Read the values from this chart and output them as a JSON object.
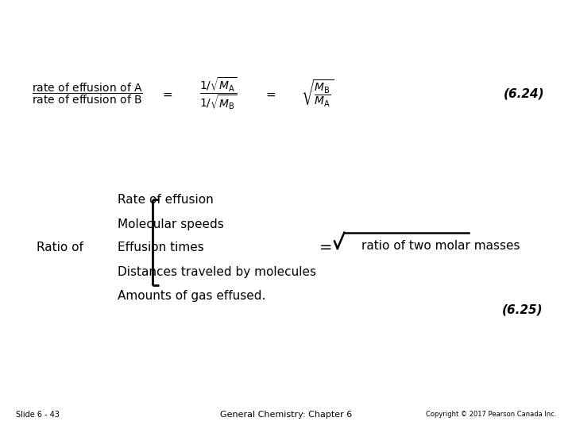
{
  "bg_color": "#ffffff",
  "text_color": "#000000",
  "slide_label": "Slide 6 - 43",
  "center_label": "General Chemistry: Chapter 6",
  "copyright": "Copyright © 2017 Pearson Canada Inc.",
  "equation_number_top": "(6.24)",
  "equation_number_bottom": "(6.25)",
  "ratio_of_label": "Ratio of",
  "bracket_items": [
    "Rate of effusion",
    "Molecular speeds",
    "Effusion times",
    "Distances traveled by molecules",
    "Amounts of gas effused."
  ],
  "sqrt_label": "ratio of two molar masses",
  "font_size_main": 11,
  "font_size_eq_num": 11,
  "font_size_footer": 7
}
